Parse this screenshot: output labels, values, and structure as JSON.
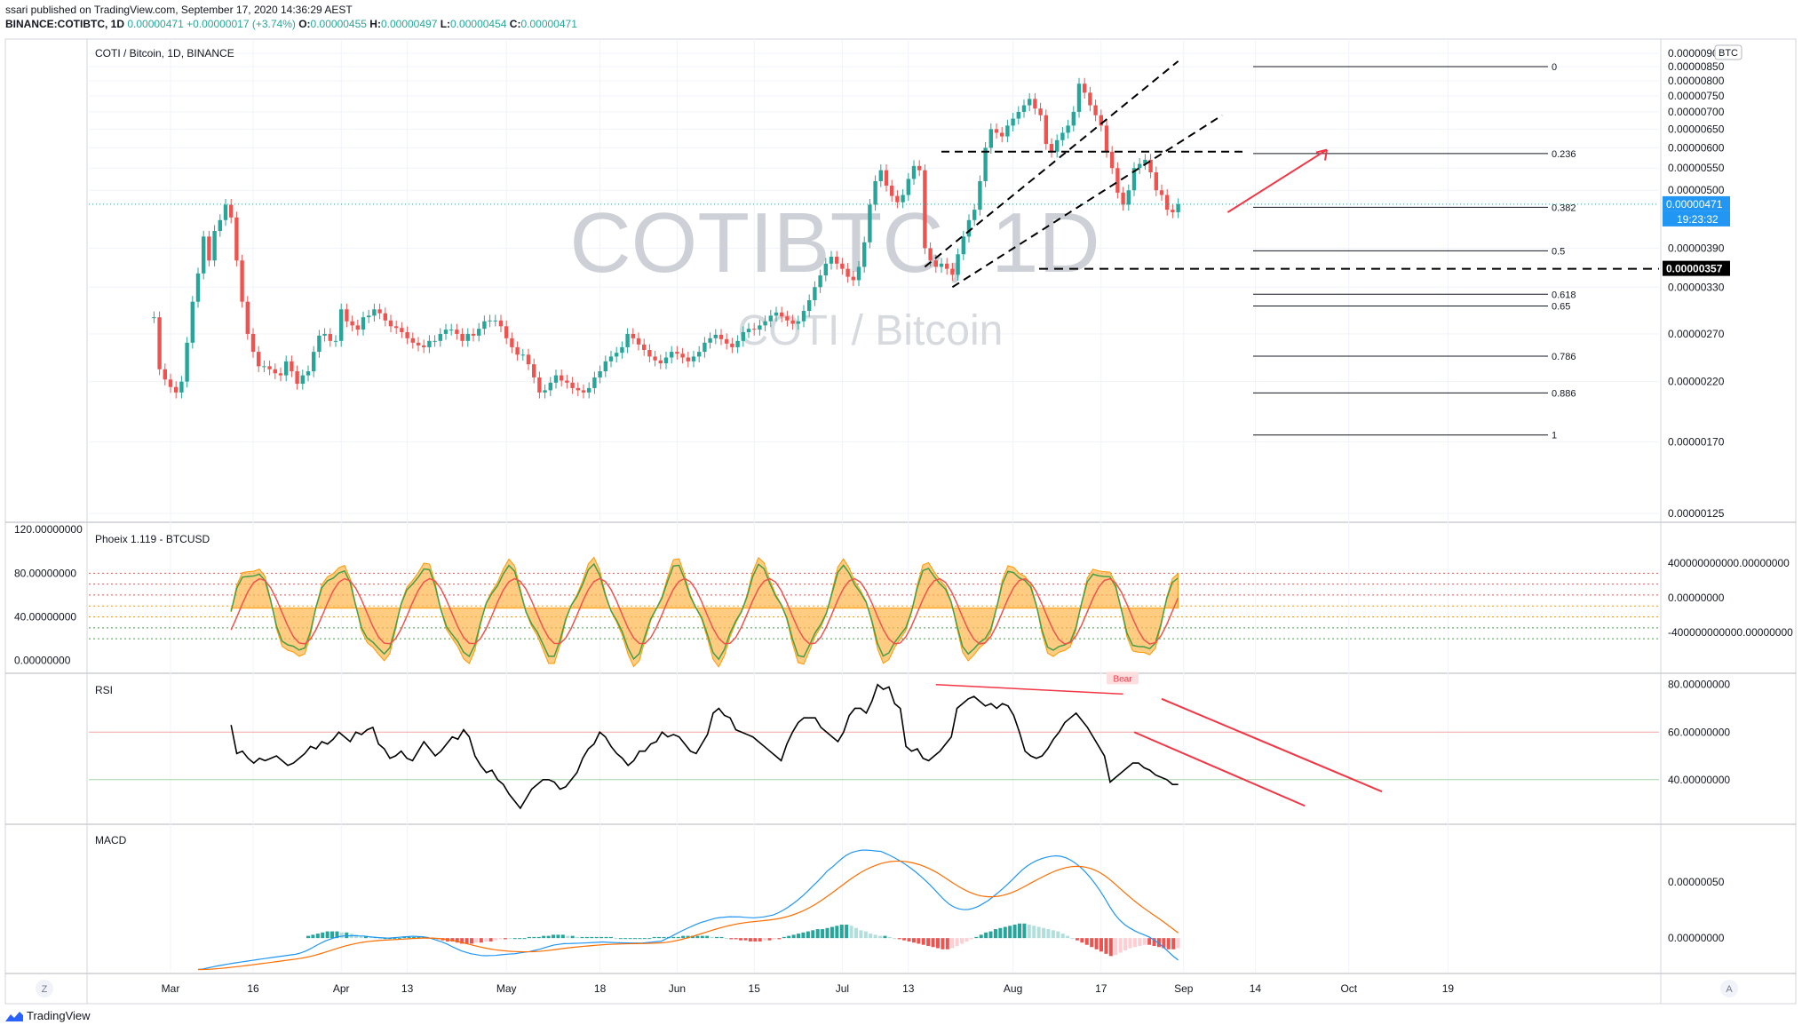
{
  "header": {
    "published": "ssari published on TradingView.com, September 17, 2020 14:36:29 AEST",
    "symbol": "BINANCE:COTIBTC, 1D",
    "o_label": "O:",
    "o_value": "0.00000455",
    "h_label": "H:",
    "h_value": "0.00000497",
    "l_label": "L:",
    "l_value": "0.00000454",
    "c_label": "C:",
    "c_value": "0.00000471",
    "change": "+0.00000017 (+3.74%)",
    "price": "0.00000471"
  },
  "watermark": {
    "main": "COTIBTC, 1D",
    "sub": "COTI / Bitcoin"
  },
  "footer": {
    "brand": "TradingView"
  },
  "colors": {
    "up": "#26a69a",
    "down": "#ef5350",
    "grid": "#e0e3eb",
    "text": "#131722"
  },
  "icons": {
    "z_button": "Z",
    "a_button": "A",
    "logo": "tradingview-logo-icon"
  },
  "chart_data": [
    {
      "type": "candlestick",
      "title": "COTI / Bitcoin, 1D, BINANCE",
      "currency_badge": "BTC",
      "y_scale": "log",
      "y_ticks": [
        "0.00000900",
        "0.00000850",
        "0.00000800",
        "0.00000750",
        "0.00000700",
        "0.00000650",
        "0.00000600",
        "0.00000550",
        "0.00000500",
        "0.00000390",
        "0.00000330",
        "0.00000270",
        "0.00000220",
        "0.00000170",
        "0.00000125"
      ],
      "y_tick_values": [
        900,
        850,
        800,
        750,
        700,
        650,
        600,
        550,
        500,
        390,
        330,
        270,
        220,
        170,
        125
      ],
      "y_units": "1e-8 BTC (satoshi)",
      "last_price_label": "0.00000471",
      "last_price": 471,
      "countdown_label": "19:23:32",
      "support_label": "0.00000357",
      "support_price": 357,
      "x_ticks": [
        "Mar",
        "16",
        "Apr",
        "13",
        "May",
        "18",
        "Jun",
        "15",
        "Jul",
        "13",
        "Aug",
        "17",
        "Sep",
        "14",
        "Oct",
        "19"
      ],
      "x_tick_days": [
        0,
        15,
        31,
        43,
        61,
        78,
        92,
        106,
        122,
        134,
        153,
        169,
        184,
        197,
        214,
        232
      ],
      "x_start": "2020-03-01",
      "first_bar_day": -3,
      "ohlc_closes": [
        290,
        232,
        222,
        215,
        210,
        220,
        260,
        310,
        350,
        410,
        370,
        420,
        440,
        470,
        445,
        370,
        310,
        270,
        250,
        235,
        235,
        232,
        228,
        226,
        240,
        230,
        218,
        226,
        230,
        250,
        268,
        270,
        262,
        262,
        300,
        285,
        280,
        275,
        290,
        292,
        300,
        295,
        286,
        279,
        277,
        272,
        265,
        260,
        257,
        255,
        262,
        262,
        270,
        275,
        275,
        270,
        262,
        270,
        268,
        276,
        285,
        286,
        286,
        279,
        265,
        255,
        247,
        247,
        237,
        224,
        210,
        212,
        219,
        226,
        221,
        219,
        214,
        212,
        210,
        214,
        224,
        230,
        240,
        245,
        249,
        255,
        270,
        265,
        258,
        252,
        245,
        241,
        238,
        244,
        250,
        248,
        244,
        240,
        245,
        250,
        260,
        265,
        269,
        264,
        259,
        255,
        262,
        272,
        276,
        275,
        280,
        285,
        292,
        296,
        291,
        286,
        282,
        285,
        298,
        312,
        330,
        347,
        365,
        376,
        365,
        357,
        345,
        340,
        360,
        400,
        470,
        520,
        545,
        510,
        488,
        475,
        490,
        525,
        555,
        545,
        390,
        370,
        360,
        365,
        357,
        348,
        380,
        410,
        440,
        460,
        520,
        600,
        650,
        640,
        630,
        660,
        680,
        700,
        720,
        740,
        710,
        690,
        610,
        590,
        620,
        640,
        660,
        700,
        790,
        760,
        720,
        690,
        660,
        590,
        550,
        495,
        470,
        500,
        550,
        560,
        570,
        540,
        500,
        490,
        460,
        455,
        471
      ],
      "fib_levels": [
        {
          "label": "0"
        },
        {
          "label": "0.236"
        },
        {
          "label": "0.382"
        },
        {
          "label": "0.5"
        },
        {
          "label": "0.618"
        },
        {
          "label": "0.65"
        },
        {
          "label": "0.786"
        },
        {
          "label": "0.886"
        },
        {
          "label": "1"
        }
      ],
      "fib_high": 850,
      "fib_low": 175
    },
    {
      "type": "line",
      "title": "Phoeix 1.119 - BTCUSD",
      "y_ticks_left": [
        "120.00000000",
        "80.00000000",
        "40.00000000",
        "0.00000000"
      ],
      "y_ticks_left_values": [
        120,
        80,
        40,
        0
      ],
      "y_ticks_right": [
        "400000000000.00000000",
        "0.00000000",
        "-400000000000.00000000"
      ],
      "y_ticks_right_values": [
        400000000000,
        0,
        -400000000000
      ],
      "ref_levels": [
        80,
        70,
        60,
        50,
        40,
        30,
        20
      ],
      "series": [
        {
          "color": "#43a047"
        },
        {
          "color": "#ef5350"
        },
        {
          "color": "#ff9800"
        }
      ]
    },
    {
      "type": "line",
      "title": "RSI",
      "y_ticks": [
        "80.00000000",
        "60.00000000",
        "40.00000000"
      ],
      "y_tick_values": [
        80,
        60,
        40
      ],
      "overbought": 60,
      "oversold": 40,
      "divergence_label": "Bear",
      "values": [
        63,
        51,
        52,
        49,
        47,
        49,
        48,
        49,
        50,
        48,
        46,
        47,
        49,
        51,
        54,
        53,
        56,
        55,
        57,
        60,
        58,
        56,
        60,
        59,
        61,
        62,
        55,
        53,
        49,
        50,
        52,
        49,
        48,
        52,
        56,
        53,
        50,
        52,
        55,
        58,
        57,
        61,
        58,
        50,
        46,
        43,
        44,
        40,
        38,
        34,
        31,
        28,
        32,
        36,
        38,
        40,
        40,
        39,
        36,
        37,
        40,
        43,
        49,
        53,
        55,
        60,
        58,
        54,
        51,
        49,
        46,
        48,
        52,
        52,
        55,
        56,
        60,
        58,
        59,
        58,
        55,
        52,
        51,
        55,
        59,
        68,
        70,
        67,
        66,
        61,
        60,
        59,
        58,
        56,
        54,
        52,
        50,
        48,
        55,
        60,
        64,
        66,
        66,
        66,
        62,
        60,
        58,
        56,
        60,
        67,
        70,
        70,
        68,
        73,
        80,
        78,
        79,
        72,
        70,
        54,
        52,
        53,
        49,
        48,
        50,
        52,
        55,
        58,
        70,
        72,
        74,
        75,
        73,
        71,
        72,
        70,
        72,
        71,
        67,
        60,
        52,
        50,
        49,
        50,
        53,
        57,
        60,
        64,
        66,
        68,
        65,
        62,
        58,
        54,
        50,
        39,
        41,
        43,
        45,
        47,
        47,
        45,
        44,
        42,
        41,
        40,
        38,
        38
      ]
    },
    {
      "type": "bar",
      "title": "MACD",
      "y_ticks": [
        "0.00000050",
        "0.00000000"
      ],
      "y_tick_values": [
        50,
        0
      ],
      "y_units": "1e-8 BTC",
      "series": [
        {
          "color": "#2196f3"
        },
        {
          "color": "#ff6d00"
        }
      ],
      "histogram": [
        2,
        3,
        4,
        5,
        6,
        6,
        6,
        5,
        5,
        4,
        3,
        2,
        2,
        1,
        1,
        0,
        0,
        0,
        0,
        0,
        1,
        1,
        1,
        1,
        1,
        0,
        0,
        -1,
        -2,
        -3,
        -3,
        -4,
        -5,
        -5,
        -5,
        -4,
        -4,
        -3,
        -3,
        -2,
        -1,
        -1,
        0,
        0,
        0,
        0,
        1,
        1,
        1,
        2,
        2,
        3,
        3,
        3,
        2,
        2,
        1,
        1,
        1,
        1,
        1,
        1,
        1,
        1,
        0,
        0,
        0,
        0,
        0,
        0,
        0,
        0,
        1,
        1,
        1,
        1,
        1,
        1,
        2,
        2,
        2,
        2,
        2,
        2,
        1,
        1,
        1,
        0,
        -1,
        -1,
        -2,
        -2,
        -3,
        -3,
        -3,
        -2,
        -2,
        -1,
        -1,
        1,
        2,
        3,
        4,
        5,
        6,
        7,
        8,
        8,
        9,
        10,
        11,
        12,
        12,
        11,
        9,
        7,
        6,
        4,
        3,
        2,
        2,
        1,
        0,
        -1,
        -2,
        -3,
        -4,
        -5,
        -6,
        -7,
        -8,
        -9,
        -10,
        -10,
        -9,
        -7,
        -5,
        -3,
        -1,
        1,
        3,
        5,
        6,
        8,
        9,
        10,
        11,
        12,
        13,
        13,
        12,
        11,
        10,
        9,
        8,
        7,
        6,
        4,
        2,
        0,
        -2,
        -4,
        -6,
        -8,
        -10,
        -12,
        -14,
        -16,
        -15,
        -13,
        -11,
        -9,
        -8,
        -7,
        -6,
        -6,
        -7,
        -8,
        -9,
        -10,
        -10,
        -9
      ]
    }
  ]
}
